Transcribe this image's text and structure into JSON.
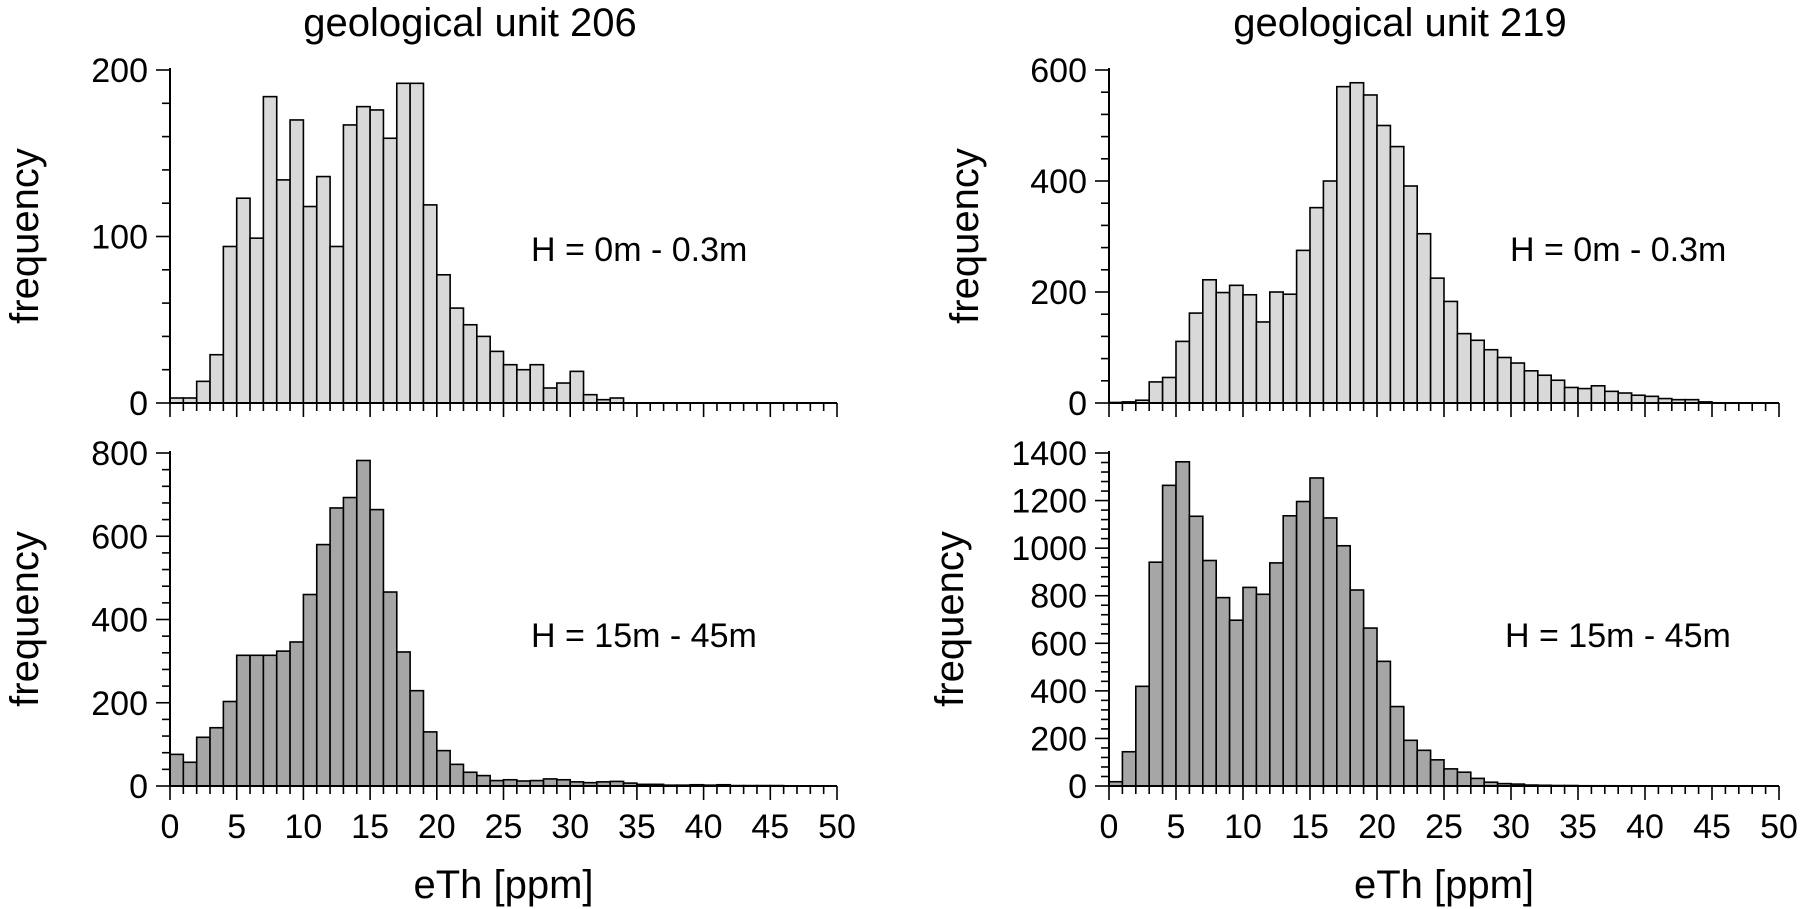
{
  "panel_titles": [
    "geological unit 206",
    "geological unit 219"
  ],
  "chart_data": [
    {
      "type": "bar",
      "title": "",
      "column_title": "geological unit 206",
      "annotation": "H = 0m - 0.3m",
      "xlabel": "",
      "ylabel": "frequency",
      "bin_width": 1,
      "xlim": [
        0,
        50
      ],
      "ylim": [
        0,
        200
      ],
      "yticks": [
        0,
        100,
        200
      ],
      "bar_color": "#d9d9d9",
      "bins": [
        0,
        1,
        2,
        3,
        4,
        5,
        6,
        7,
        8,
        9,
        10,
        11,
        12,
        13,
        14,
        15,
        16,
        17,
        18,
        19,
        20,
        21,
        22,
        23,
        24,
        25,
        26,
        27,
        28,
        29,
        30,
        31,
        32,
        33,
        34,
        35,
        36,
        37,
        38,
        39,
        40,
        41,
        42,
        43,
        44,
        45,
        46,
        47,
        48,
        49
      ],
      "values": [
        3,
        3,
        13,
        29,
        94,
        123,
        99,
        184,
        134,
        170,
        118,
        136,
        94,
        167,
        178,
        176,
        159,
        192,
        192,
        119,
        77,
        57,
        47,
        40,
        31,
        23,
        20,
        23,
        9,
        12,
        19,
        5,
        2,
        3,
        0,
        0,
        0,
        0,
        0,
        0,
        0,
        0,
        0,
        0,
        0,
        0,
        0,
        0,
        0,
        0
      ]
    },
    {
      "type": "bar",
      "title": "",
      "column_title": "geological unit 219",
      "annotation": "H = 0m - 0.3m",
      "xlabel": "",
      "ylabel": "frequency",
      "bin_width": 1,
      "xlim": [
        0,
        50
      ],
      "ylim": [
        0,
        600
      ],
      "yticks": [
        0,
        200,
        400,
        600
      ],
      "bar_color": "#d9d9d9",
      "bins": [
        0,
        1,
        2,
        3,
        4,
        5,
        6,
        7,
        8,
        9,
        10,
        11,
        12,
        13,
        14,
        15,
        16,
        17,
        18,
        19,
        20,
        21,
        22,
        23,
        24,
        25,
        26,
        27,
        28,
        29,
        30,
        31,
        32,
        33,
        34,
        35,
        36,
        37,
        38,
        39,
        40,
        41,
        42,
        43,
        44,
        45,
        46,
        47,
        48,
        49
      ],
      "values": [
        1,
        2,
        5,
        38,
        46,
        111,
        162,
        222,
        199,
        212,
        195,
        146,
        200,
        196,
        275,
        352,
        400,
        570,
        577,
        555,
        500,
        462,
        391,
        305,
        225,
        183,
        125,
        113,
        96,
        82,
        72,
        58,
        50,
        41,
        28,
        26,
        31,
        21,
        18,
        14,
        12,
        8,
        6,
        6,
        2,
        0,
        0,
        0,
        0,
        0
      ]
    },
    {
      "type": "bar",
      "title": "",
      "column_title": "geological unit 206",
      "annotation": "H = 15m - 45m",
      "xlabel": "eTh [ppm]",
      "ylabel": "frequency",
      "bin_width": 1,
      "xlim": [
        0,
        50
      ],
      "ylim": [
        0,
        800
      ],
      "xticks": [
        0,
        5,
        10,
        15,
        20,
        25,
        30,
        35,
        40,
        45,
        50
      ],
      "yticks": [
        0,
        200,
        400,
        600,
        800
      ],
      "bar_color": "#a6a6a6",
      "bins": [
        0,
        1,
        2,
        3,
        4,
        5,
        6,
        7,
        8,
        9,
        10,
        11,
        12,
        13,
        14,
        15,
        16,
        17,
        18,
        19,
        20,
        21,
        22,
        23,
        24,
        25,
        26,
        27,
        28,
        29,
        30,
        31,
        32,
        33,
        34,
        35,
        36,
        37,
        38,
        39,
        40,
        41,
        42,
        43,
        44,
        45,
        46,
        47,
        48,
        49
      ],
      "values": [
        76,
        57,
        117,
        140,
        203,
        314,
        314,
        314,
        324,
        346,
        460,
        580,
        668,
        693,
        782,
        664,
        466,
        322,
        229,
        130,
        85,
        52,
        33,
        25,
        13,
        15,
        12,
        13,
        17,
        15,
        10,
        8,
        10,
        11,
        7,
        4,
        4,
        2,
        2,
        3,
        2,
        3,
        1,
        1,
        1,
        1,
        0,
        0,
        0,
        0
      ]
    },
    {
      "type": "bar",
      "title": "",
      "column_title": "geological unit 219",
      "annotation": "H = 15m - 45m",
      "xlabel": "eTh [ppm]",
      "ylabel": "frequency",
      "bin_width": 1,
      "xlim": [
        0,
        50
      ],
      "ylim": [
        0,
        1400
      ],
      "xticks": [
        0,
        5,
        10,
        15,
        20,
        25,
        30,
        35,
        40,
        45,
        50
      ],
      "yticks": [
        0,
        200,
        400,
        600,
        800,
        1000,
        1200,
        1400
      ],
      "bar_color": "#a6a6a6",
      "bins": [
        0,
        1,
        2,
        3,
        4,
        5,
        6,
        7,
        8,
        9,
        10,
        11,
        12,
        13,
        14,
        15,
        16,
        17,
        18,
        19,
        20,
        21,
        22,
        23,
        24,
        25,
        26,
        27,
        28,
        29,
        30,
        31,
        32,
        33,
        34,
        35,
        36,
        37,
        38,
        39,
        40,
        41,
        42,
        43,
        44,
        45,
        46,
        47,
        48,
        49
      ],
      "values": [
        18,
        144,
        419,
        941,
        1264,
        1363,
        1134,
        948,
        792,
        697,
        835,
        806,
        938,
        1136,
        1196,
        1295,
        1127,
        1010,
        824,
        664,
        524,
        334,
        192,
        150,
        110,
        72,
        58,
        32,
        16,
        10,
        8,
        4,
        3,
        2,
        2,
        1,
        1,
        1,
        0,
        0,
        0,
        0,
        0,
        0,
        0,
        0,
        0,
        0,
        0,
        0
      ]
    }
  ]
}
